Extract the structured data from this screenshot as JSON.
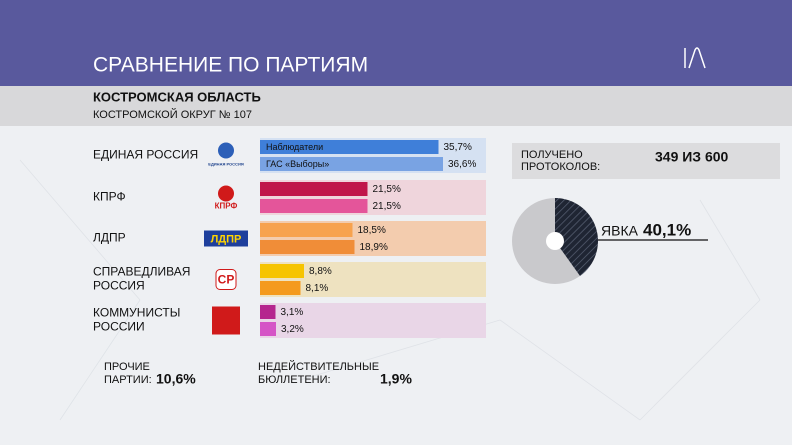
{
  "header": {
    "title": "СРАВНЕНИЕ ПО ПАРТИЯМ"
  },
  "region": {
    "name": "КОСТРОМСКАЯ ОБЛАСТЬ",
    "district": "КОСТРОМСКОЙ ОКРУГ № 107"
  },
  "series_names": [
    "Наблюдатели",
    "ГАС «Выборы»"
  ],
  "parties": [
    {
      "name_lines": [
        "ЕДИНАЯ РОССИЯ"
      ],
      "logo_text": "ЕДИНАЯ РОССИЯ",
      "values": [
        35.7,
        36.6
      ],
      "value_labels": [
        "35,7%",
        "36,6%"
      ],
      "colors": [
        "#3f7fd9",
        "#79a3e3"
      ],
      "background": "#d5e1f2"
    },
    {
      "name_lines": [
        "КПРФ"
      ],
      "logo_text": "КПРФ",
      "values": [
        21.5,
        21.5
      ],
      "value_labels": [
        "21,5%",
        "21,5%"
      ],
      "colors": [
        "#c0164a",
        "#e4559a"
      ],
      "background": "#efd5dc"
    },
    {
      "name_lines": [
        "ЛДПР"
      ],
      "logo_text": "ЛДПР",
      "values": [
        18.5,
        18.9
      ],
      "value_labels": [
        "18,5%",
        "18,9%"
      ],
      "colors": [
        "#f7a24e",
        "#f08d38"
      ],
      "background": "#f3ccae"
    },
    {
      "name_lines": [
        "СПРАВЕДЛИВАЯ",
        "РОССИЯ"
      ],
      "logo_text": "СР",
      "values": [
        8.8,
        8.1
      ],
      "value_labels": [
        "8,8%",
        "8,1%"
      ],
      "colors": [
        "#f6c400",
        "#f49a1e"
      ],
      "background": "#eee2c0"
    },
    {
      "name_lines": [
        "КОММУНИСТЫ",
        "РОССИИ"
      ],
      "logo_text": null,
      "values": [
        3.1,
        3.2
      ],
      "value_labels": [
        "3,1%",
        "3,2%"
      ],
      "colors": [
        "#b5258e",
        "#d554c6"
      ],
      "background": "#e9d6e7"
    }
  ],
  "protocols": {
    "label_lines": [
      "ПОЛУЧЕНО",
      "ПРОТОКОЛОВ:"
    ],
    "value": "349 ИЗ 600"
  },
  "turnout": {
    "label": "ЯВКА",
    "value": 40.1,
    "value_label": "40,1%"
  },
  "others": {
    "label_lines": [
      "ПРОЧИЕ",
      "ПАРТИИ:"
    ],
    "value_label": "10,6%"
  },
  "invalid": {
    "label_lines": [
      "НЕДЕЙСТВИТЕЛЬНЫЕ",
      "БЮЛЛЕТЕНИ:"
    ],
    "value_label": "1,9%"
  }
}
